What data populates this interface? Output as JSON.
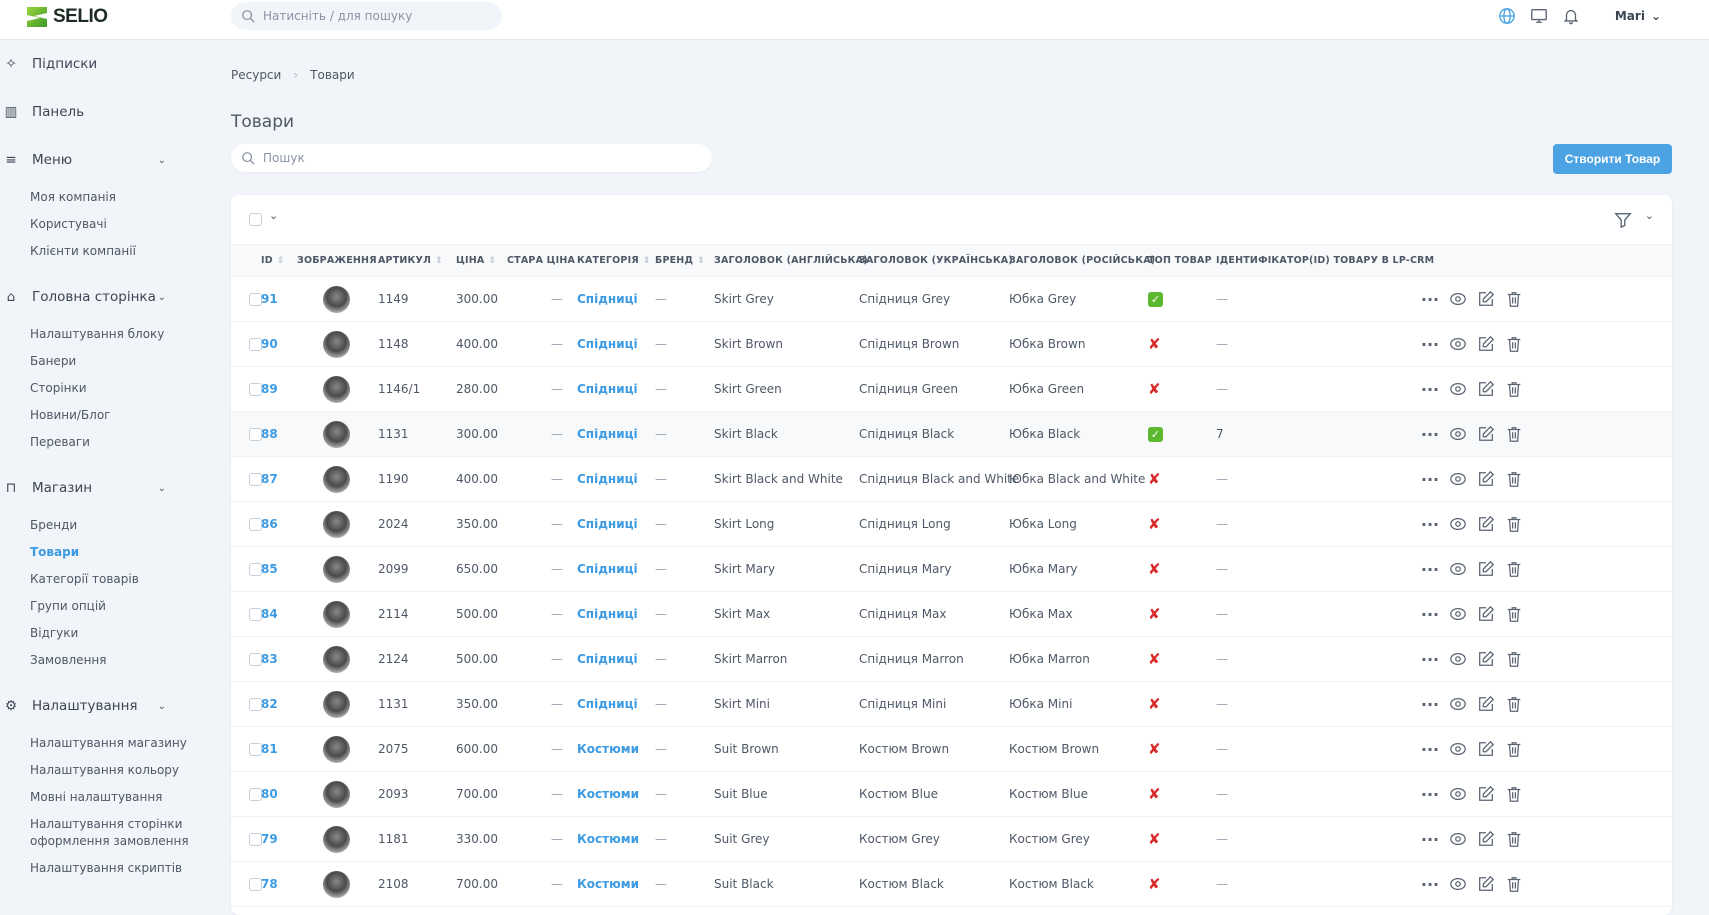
{
  "brand": {
    "name": "SELIO",
    "accent": "#4ba3e3"
  },
  "topbar": {
    "search_placeholder": "Натисніть / для пошуку",
    "user": "Mari",
    "icons": [
      "globe-icon",
      "monitor-icon",
      "bell-icon"
    ]
  },
  "sidebar": {
    "groups": [
      {
        "label": "Підписки",
        "icon": "sparkles-icon",
        "items": []
      },
      {
        "label": "Панель",
        "icon": "bar-chart-icon",
        "items": []
      },
      {
        "label": "Меню",
        "icon": "menu-icon",
        "expandable": true,
        "items": [
          "Моя компанія",
          "Користувачі",
          "Клієнти компанії"
        ]
      },
      {
        "label": "Головна сторінка",
        "icon": "home-icon",
        "expandable": true,
        "items": [
          "Налаштування блоку",
          "Банери",
          "Сторінки",
          "Новини/Блог",
          "Переваги"
        ]
      },
      {
        "label": "Магазин",
        "icon": "shopping-bag-icon",
        "expandable": true,
        "items": [
          "Бренди",
          "Товари",
          "Категорії товарів",
          "Групи опцій",
          "Відгуки",
          "Замовлення"
        ]
      },
      {
        "label": "Налаштування",
        "icon": "gear-icon",
        "expandable": true,
        "items": [
          "Налаштування магазину",
          "Налаштування кольору",
          "Мовні налаштування",
          "Налаштування сторінки оформлення замовлення",
          "Налаштування скриптів"
        ]
      }
    ],
    "active": "Товари"
  },
  "breadcrumb": [
    "Ресурси",
    "Товари"
  ],
  "page": {
    "title": "Товари",
    "search_placeholder": "Пошук",
    "create_button": "Створити Товар"
  },
  "table": {
    "columns": [
      "ID",
      "ЗОБРАЖЕННЯ",
      "АРТИКУЛ",
      "ЦІНА",
      "СТАРА ЦІНА",
      "КАТЕГОРІЯ",
      "БРЕНД",
      "ЗАГОЛОВОК (АНГЛІЙСЬКА)",
      "ЗАГОЛОВОК (УКРАЇНСЬКА)",
      "ЗАГОЛОВОК (РОСІЙСЬКА)",
      "ТОП ТОВАР",
      "ІДЕНТИФІКАТОР(ID) ТОВАРУ В LP-CRM"
    ],
    "rows": [
      {
        "id": "91",
        "sku": "1149",
        "price": "300.00",
        "old": "—",
        "cat": "Спідниці",
        "brand": "—",
        "en": "Skirt Grey",
        "ua": "Спідниця Grey",
        "ru": "Юбка Grey",
        "top": true,
        "lp": "—"
      },
      {
        "id": "90",
        "sku": "1148",
        "price": "400.00",
        "old": "—",
        "cat": "Спідниці",
        "brand": "—",
        "en": "Skirt Brown",
        "ua": "Спідниця Brown",
        "ru": "Юбка Brown",
        "top": false,
        "lp": "—"
      },
      {
        "id": "89",
        "sku": "1146/1",
        "price": "280.00",
        "old": "—",
        "cat": "Спідниці",
        "brand": "—",
        "en": "Skirt Green",
        "ua": "Спідниця Green",
        "ru": "Юбка Green",
        "top": false,
        "lp": "—"
      },
      {
        "id": "88",
        "sku": "1131",
        "price": "300.00",
        "old": "—",
        "cat": "Спідниці",
        "brand": "—",
        "en": "Skirt Black",
        "ua": "Спідниця Black",
        "ru": "Юбка Black",
        "top": true,
        "lp": "7"
      },
      {
        "id": "87",
        "sku": "1190",
        "price": "400.00",
        "old": "—",
        "cat": "Спідниці",
        "brand": "—",
        "en": "Skirt Black and White",
        "ua": "Спідниця Black and White",
        "ru": "Юбка Black and White",
        "top": false,
        "lp": "—"
      },
      {
        "id": "86",
        "sku": "2024",
        "price": "350.00",
        "old": "—",
        "cat": "Спідниці",
        "brand": "—",
        "en": "Skirt Long",
        "ua": "Спідниця Long",
        "ru": "Юбка Long",
        "top": false,
        "lp": "—"
      },
      {
        "id": "85",
        "sku": "2099",
        "price": "650.00",
        "old": "—",
        "cat": "Спідниці",
        "brand": "—",
        "en": "Skirt Mary",
        "ua": "Спідниця Mary",
        "ru": "Юбка Mary",
        "top": false,
        "lp": "—"
      },
      {
        "id": "84",
        "sku": "2114",
        "price": "500.00",
        "old": "—",
        "cat": "Спідниці",
        "brand": "—",
        "en": "Skirt Max",
        "ua": "Спідниця Max",
        "ru": "Юбка Max",
        "top": false,
        "lp": "—"
      },
      {
        "id": "83",
        "sku": "2124",
        "price": "500.00",
        "old": "—",
        "cat": "Спідниці",
        "brand": "—",
        "en": "Skirt Marron",
        "ua": "Спідниця Marron",
        "ru": "Юбка Marron",
        "top": false,
        "lp": "—"
      },
      {
        "id": "82",
        "sku": "1131",
        "price": "350.00",
        "old": "—",
        "cat": "Спідниці",
        "brand": "—",
        "en": "Skirt Mini",
        "ua": "Спідниця Mini",
        "ru": "Юбка Mini",
        "top": false,
        "lp": "—"
      },
      {
        "id": "81",
        "sku": "2075",
        "price": "600.00",
        "old": "—",
        "cat": "Костюми",
        "brand": "—",
        "en": "Suit Brown",
        "ua": "Костюм Brown",
        "ru": "Костюм Brown",
        "top": false,
        "lp": "—"
      },
      {
        "id": "80",
        "sku": "2093",
        "price": "700.00",
        "old": "—",
        "cat": "Костюми",
        "brand": "—",
        "en": "Suit Blue",
        "ua": "Костюм Blue",
        "ru": "Костюм Blue",
        "top": false,
        "lp": "—"
      },
      {
        "id": "79",
        "sku": "1181",
        "price": "330.00",
        "old": "—",
        "cat": "Костюми",
        "brand": "—",
        "en": "Suit Grey",
        "ua": "Костюм Grey",
        "ru": "Костюм Grey",
        "top": false,
        "lp": "—"
      },
      {
        "id": "78",
        "sku": "2108",
        "price": "700.00",
        "old": "—",
        "cat": "Костюми",
        "brand": "—",
        "en": "Suit Black",
        "ua": "Костюм Black",
        "ru": "Костюм Black",
        "top": false,
        "lp": "—"
      }
    ],
    "hovered_row": "88"
  }
}
